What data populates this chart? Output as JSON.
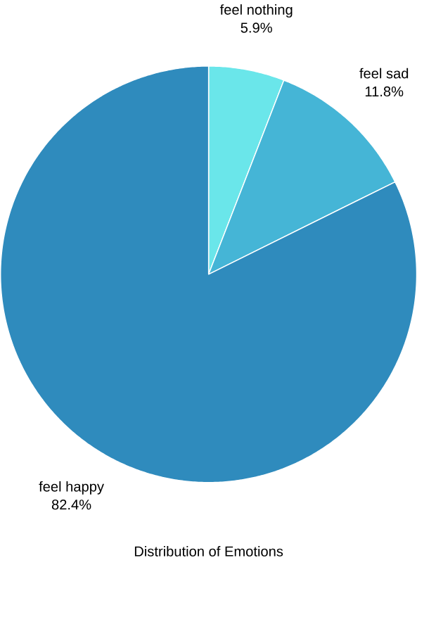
{
  "chart_data": {
    "type": "pie",
    "title": "Distribution of Emotions",
    "categories": [
      "feel nothing",
      "feel sad",
      "feel happy"
    ],
    "values": [
      5.9,
      11.8,
      82.4
    ],
    "value_labels": [
      "5.9%",
      "11.8%",
      "82.4%"
    ],
    "colors": [
      "#6ae6ea",
      "#45b5d6",
      "#2f8bbd"
    ]
  }
}
